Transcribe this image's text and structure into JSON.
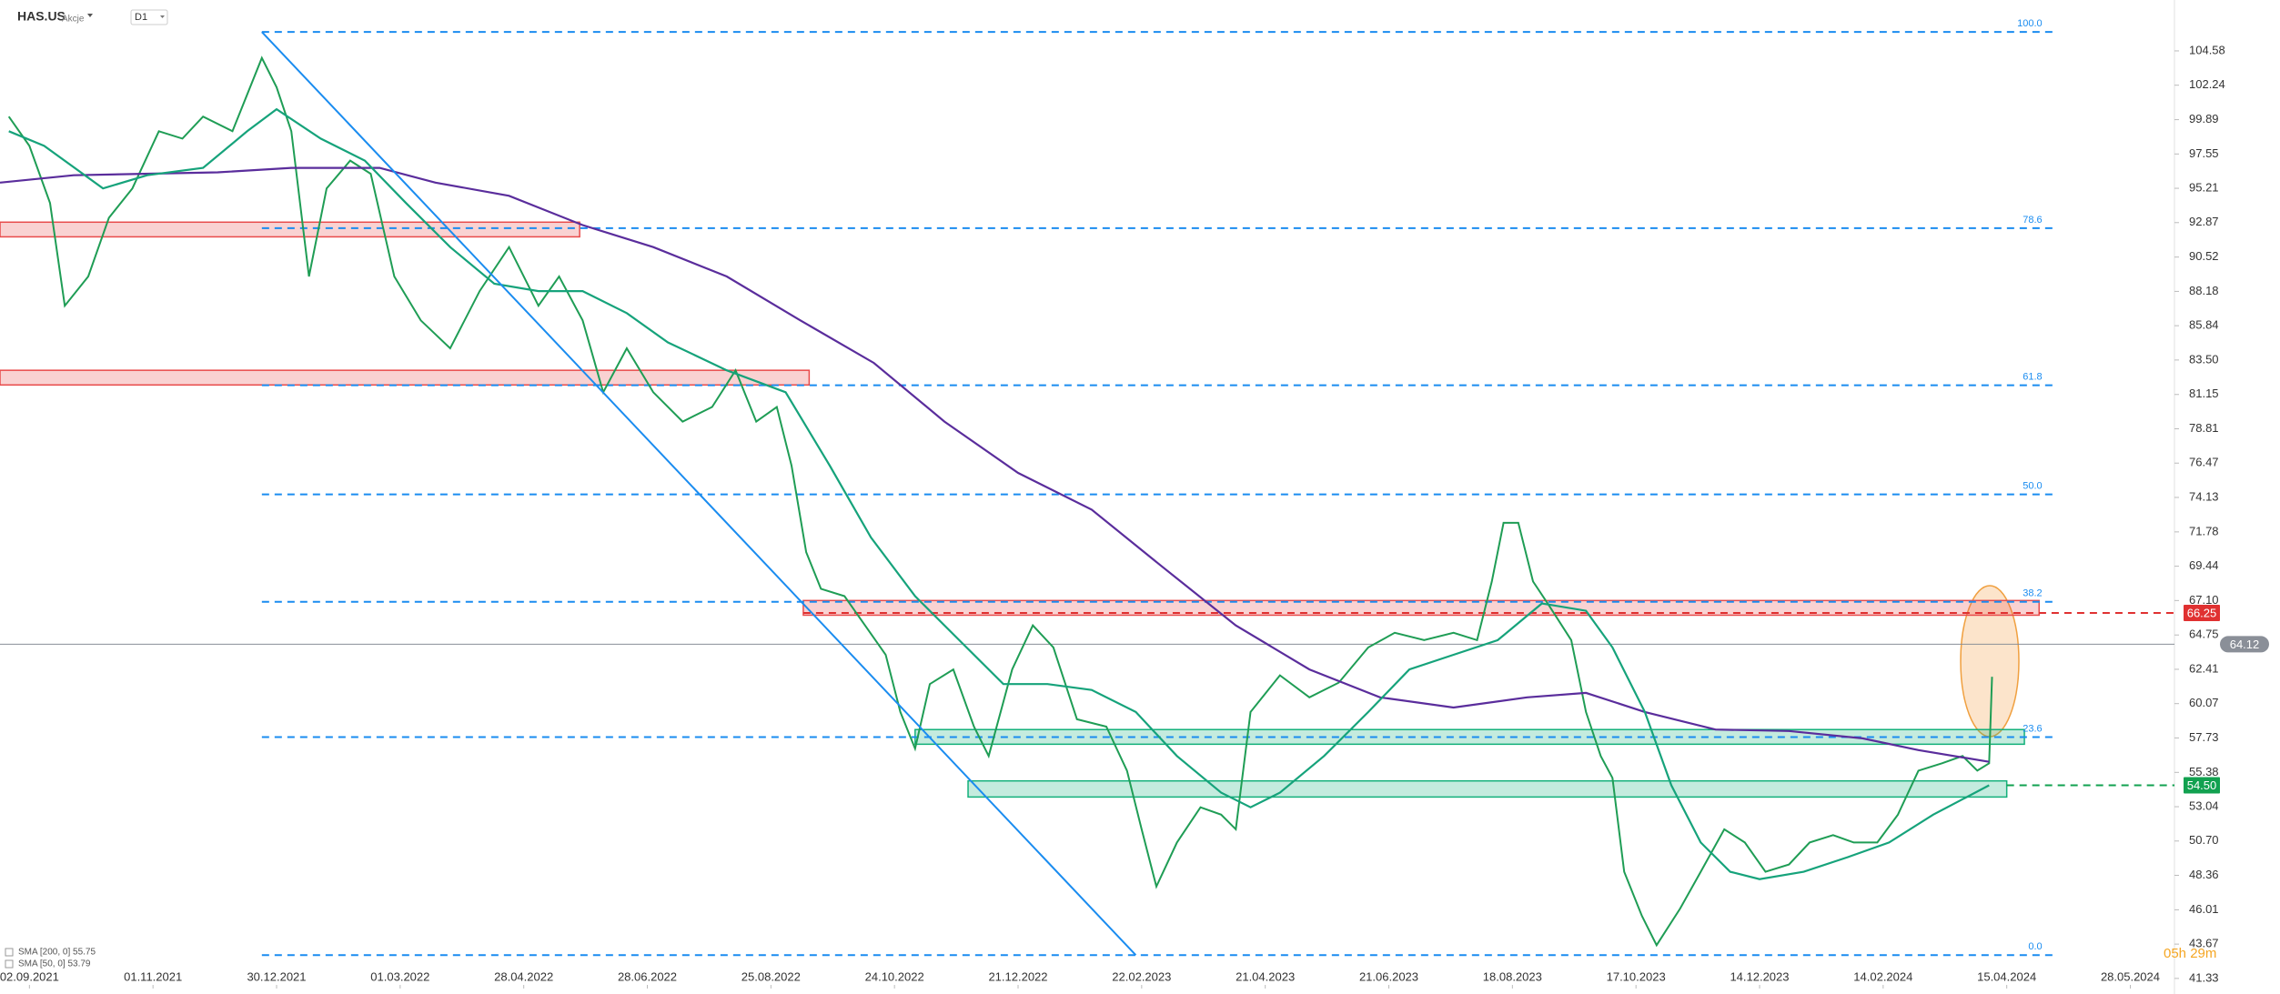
{
  "header": {
    "symbol": "HAS.US",
    "kind": "Akcje",
    "interval": "D1"
  },
  "countdown": "05h 29m",
  "chart_data": {
    "type": "line",
    "xlim": [
      -10,
      729
    ],
    "xticks": [
      {
        "value": 0,
        "label": "02.09.2021"
      },
      {
        "value": 42,
        "label": "01.11.2021"
      },
      {
        "value": 84,
        "label": "30.12.2021"
      },
      {
        "value": 126,
        "label": "01.03.2022"
      },
      {
        "value": 168,
        "label": "28.04.2022"
      },
      {
        "value": 210,
        "label": "28.06.2022"
      },
      {
        "value": 252,
        "label": "25.08.2022"
      },
      {
        "value": 294,
        "label": "24.10.2022"
      },
      {
        "value": 336,
        "label": "21.12.2022"
      },
      {
        "value": 378,
        "label": "22.02.2023"
      },
      {
        "value": 420,
        "label": "21.04.2023"
      },
      {
        "value": 462,
        "label": "21.06.2023"
      },
      {
        "value": 504,
        "label": "18.08.2023"
      },
      {
        "value": 546,
        "label": "17.10.2023"
      },
      {
        "value": 588,
        "label": "14.12.2023"
      },
      {
        "value": 630,
        "label": "14.02.2024"
      },
      {
        "value": 672,
        "label": "15.04.2024"
      },
      {
        "value": 714,
        "label": "28.05.2024"
      }
    ],
    "ylim": [
      40.64,
      108.05
    ],
    "yticks": [
      104.58,
      102.24,
      99.89,
      97.55,
      95.21,
      92.87,
      90.52,
      88.18,
      85.84,
      {
        "value": 83.5,
        "label": "83.50"
      },
      81.15,
      78.81,
      76.47,
      74.13,
      71.78,
      69.44,
      {
        "value": 67.1,
        "label": "67.10"
      },
      64.75,
      62.41,
      60.07,
      57.73,
      55.38,
      53.04,
      {
        "value": 50.7,
        "label": "50.70"
      },
      48.36,
      46.01,
      43.67,
      41.33
    ],
    "series": [
      {
        "color": "#1f9d55",
        "x": [
          -7,
          0,
          7,
          12,
          20,
          27,
          35,
          44,
          52,
          59,
          69,
          79,
          84,
          89,
          95,
          101,
          109,
          116,
          124,
          133,
          143,
          153,
          163,
          173,
          180,
          188,
          195,
          203,
          212,
          222,
          232,
          240,
          247,
          254,
          259,
          264,
          269,
          277,
          284,
          291,
          296,
          301,
          306,
          314,
          321,
          326,
          334,
          341,
          348,
          356,
          366,
          373,
          378,
          383,
          390,
          398,
          405,
          410,
          415,
          425,
          435,
          445,
          455,
          464,
          474,
          484,
          492,
          497,
          501,
          506,
          511,
          516,
          524,
          529,
          534,
          538,
          542,
          548,
          553,
          561,
          568,
          576,
          583,
          590,
          598,
          605,
          613,
          620,
          628,
          635,
          642,
          650,
          657,
          662,
          666,
          667
        ],
        "values": [
          100.1,
          98.1,
          94.2,
          87.2,
          89.2,
          93.2,
          95.2,
          99.1,
          98.6,
          100.1,
          99.1,
          104.1,
          102.1,
          99.1,
          89.2,
          95.2,
          97.1,
          96.2,
          89.2,
          86.2,
          84.3,
          88.2,
          91.2,
          87.2,
          89.2,
          86.2,
          81.3,
          84.3,
          81.3,
          79.3,
          80.3,
          82.8,
          79.3,
          80.3,
          76.3,
          70.4,
          67.9,
          67.4,
          65.4,
          63.4,
          59.5,
          57.0,
          61.4,
          62.4,
          58.5,
          56.5,
          62.4,
          65.4,
          63.9,
          59.0,
          58.5,
          55.5,
          51.5,
          47.6,
          50.6,
          53.0,
          52.5,
          51.5,
          59.5,
          62.0,
          60.5,
          61.5,
          63.9,
          64.9,
          64.4,
          64.9,
          64.4,
          68.4,
          72.4,
          72.4,
          68.4,
          66.9,
          64.4,
          59.5,
          56.5,
          55.0,
          48.6,
          45.6,
          43.6,
          46.1,
          48.6,
          51.5,
          50.6,
          48.6,
          49.1,
          50.6,
          51.1,
          50.6,
          50.6,
          52.5,
          55.5,
          56.0,
          56.5,
          55.5,
          56.0,
          61.9
        ]
      },
      {
        "name": "SMA [200, 0] 55.75",
        "color": "#5a2d9c",
        "x": [
          -10,
          15,
          64,
          89,
          119,
          138,
          163,
          188,
          212,
          237,
          262,
          287,
          311,
          336,
          361,
          385,
          410,
          435,
          459,
          484,
          509,
          529,
          549,
          573,
          598,
          623,
          642,
          666
        ],
        "values": [
          95.6,
          96.1,
          96.3,
          96.6,
          96.6,
          95.6,
          94.7,
          92.7,
          91.2,
          89.2,
          86.2,
          83.3,
          79.3,
          75.8,
          73.3,
          69.4,
          65.4,
          62.4,
          60.5,
          59.8,
          60.5,
          60.8,
          59.5,
          58.3,
          58.2,
          57.7,
          56.9,
          56.1
        ]
      },
      {
        "name": "SMA [50, 0] 53.79",
        "color": "#16a37b",
        "x": [
          -7,
          5,
          25,
          40,
          59,
          74,
          84,
          99,
          114,
          128,
          143,
          158,
          173,
          188,
          203,
          217,
          237,
          257,
          272,
          286,
          301,
          316,
          331,
          346,
          361,
          376,
          390,
          405,
          415,
          425,
          440,
          455,
          469,
          484,
          499,
          514,
          529,
          538,
          549,
          558,
          568,
          578,
          588,
          603,
          618,
          632,
          647,
          666
        ],
        "values": [
          99.1,
          98.1,
          95.2,
          96.1,
          96.6,
          99.1,
          100.6,
          98.6,
          97.1,
          94.2,
          91.2,
          88.7,
          88.2,
          88.2,
          86.7,
          84.7,
          82.8,
          81.3,
          76.3,
          71.4,
          67.4,
          64.4,
          61.4,
          61.4,
          61.0,
          59.5,
          56.5,
          54.0,
          53.0,
          54.0,
          56.5,
          59.5,
          62.4,
          63.4,
          64.4,
          66.9,
          66.4,
          63.9,
          59.5,
          54.5,
          50.6,
          48.6,
          48.1,
          48.6,
          49.6,
          50.6,
          52.5,
          54.5
        ]
      }
    ],
    "fib_x": [
      79,
      689
    ],
    "fib_levels": [
      {
        "price": 105.87,
        "label": "100.0"
      },
      {
        "price": 92.49,
        "label": "78.6"
      },
      {
        "price": 81.78,
        "label": "61.8"
      },
      {
        "price": 74.34,
        "label": "50.0"
      },
      {
        "price": 67.01,
        "label": "38.2"
      },
      {
        "price": 57.79,
        "label": "23.6"
      },
      {
        "price": 42.92,
        "label": "0.0"
      }
    ],
    "zones": [
      {
        "from": 91.9,
        "to": 92.9,
        "x": [
          -10,
          187
        ],
        "color": "#e84b4b"
      },
      {
        "from": 81.8,
        "to": 82.8,
        "x": [
          -10,
          265
        ],
        "color": "#e84b4b"
      },
      {
        "from": 66.1,
        "to": 67.1,
        "x": [
          263,
          683
        ],
        "color": "#e84b4b"
      },
      {
        "from": 57.3,
        "to": 58.3,
        "x": [
          301,
          678
        ],
        "color": "#12b07a"
      },
      {
        "from": 53.7,
        "to": 54.8,
        "x": [
          319,
          672
        ],
        "color": "#12b07a"
      }
    ],
    "trendline": {
      "x": [
        79,
        376
      ],
      "y": [
        105.87,
        42.92
      ],
      "color": "#1a8cf0"
    },
    "levels": [
      {
        "value": 66.25,
        "label": "66.25",
        "color": "#e03131",
        "x": [
          263,
          729
        ]
      },
      {
        "value": 64.12,
        "label": "64.12",
        "color": "#8a8f98",
        "x": [
          -10,
          729
        ]
      },
      {
        "value": 54.5,
        "label": "54.50",
        "color": "#12a150",
        "x": [
          672,
          729
        ]
      }
    ]
  }
}
